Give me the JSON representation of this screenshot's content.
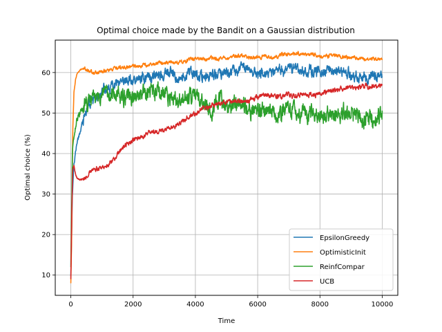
{
  "chart_data": {
    "type": "line",
    "title": "Optimal choice made by the Bandit on a Gaussian distribution",
    "xlabel": "Time",
    "ylabel": "Optimal choice (%)",
    "xlim": [
      -500,
      10500
    ],
    "ylim": [
      5,
      68
    ],
    "x_ticks": [
      0,
      2000,
      4000,
      6000,
      8000,
      10000
    ],
    "y_ticks": [
      10,
      20,
      30,
      40,
      50,
      60
    ],
    "grid": true,
    "legend_position": "lower-right",
    "series": [
      {
        "name": "EpsilonGreedy",
        "color": "#1f77b4",
        "x": [
          0,
          50,
          100,
          150,
          200,
          300,
          400,
          500,
          700,
          1000,
          1300,
          1500,
          1700,
          2000,
          2500,
          3000,
          3500,
          4000,
          4500,
          5000,
          5500,
          6000,
          6500,
          7000,
          7500,
          8000,
          8500,
          9000,
          9500,
          10000
        ],
        "y": [
          10,
          30,
          38,
          41,
          43,
          46,
          49,
          51,
          53,
          54.5,
          56,
          57,
          58,
          58.5,
          59.5,
          60,
          59,
          59,
          59.5,
          60,
          60.5,
          59.5,
          59.5,
          61,
          60.5,
          60.5,
          60.5,
          59,
          59,
          61
        ],
        "noise": 1.0
      },
      {
        "name": "OptimisticInit",
        "color": "#ff7f0e",
        "x": [
          0,
          30,
          60,
          100,
          150,
          200,
          300,
          400,
          500,
          700,
          1000,
          1500,
          2000,
          2500,
          3000,
          3500,
          4000,
          4500,
          5000,
          5500,
          6000,
          6500,
          7000,
          7500,
          8000,
          8500,
          9000,
          9500,
          10000
        ],
        "y": [
          8,
          20,
          45,
          55,
          58,
          59.5,
          60.5,
          61,
          60.5,
          60,
          60.5,
          61,
          61.5,
          62,
          62.5,
          63,
          63.5,
          63.5,
          63.5,
          64,
          64,
          64,
          64.5,
          64.5,
          64,
          64,
          63.5,
          63.5,
          63.5
        ],
        "noise": 0.35
      },
      {
        "name": "ReinfCompar",
        "color": "#2ca02c",
        "x": [
          0,
          50,
          100,
          150,
          200,
          300,
          400,
          500,
          700,
          1000,
          1500,
          2000,
          2500,
          3000,
          3500,
          4000,
          4500,
          5000,
          5500,
          6000,
          6500,
          7000,
          7500,
          8000,
          8500,
          9000,
          9500,
          10000
        ],
        "y": [
          12,
          40,
          44,
          46,
          48,
          50,
          51,
          52,
          53,
          53.5,
          54,
          54,
          54,
          54,
          53.5,
          53,
          52.5,
          52,
          51.5,
          51.5,
          51,
          50.5,
          50,
          50,
          49.5,
          49.5,
          49.5,
          49.5
        ],
        "noise": 1.6
      },
      {
        "name": "UCB",
        "color": "#d62728",
        "x": [
          0,
          30,
          60,
          100,
          150,
          200,
          300,
          400,
          500,
          700,
          1000,
          1300,
          1500,
          1800,
          2000,
          2500,
          3000,
          3500,
          4000,
          4500,
          5000,
          5500,
          6000,
          6500,
          7000,
          7500,
          8000,
          8500,
          9000,
          9500,
          10000
        ],
        "y": [
          9,
          25,
          36,
          37,
          35,
          34,
          33.5,
          34,
          34.5,
          35.5,
          36.5,
          38,
          40,
          42,
          43,
          45,
          46,
          48,
          50.5,
          51.5,
          52.5,
          53,
          53.5,
          54,
          54.5,
          54.5,
          55,
          55.5,
          56,
          56,
          56.5
        ],
        "noise": 0.45
      }
    ]
  }
}
